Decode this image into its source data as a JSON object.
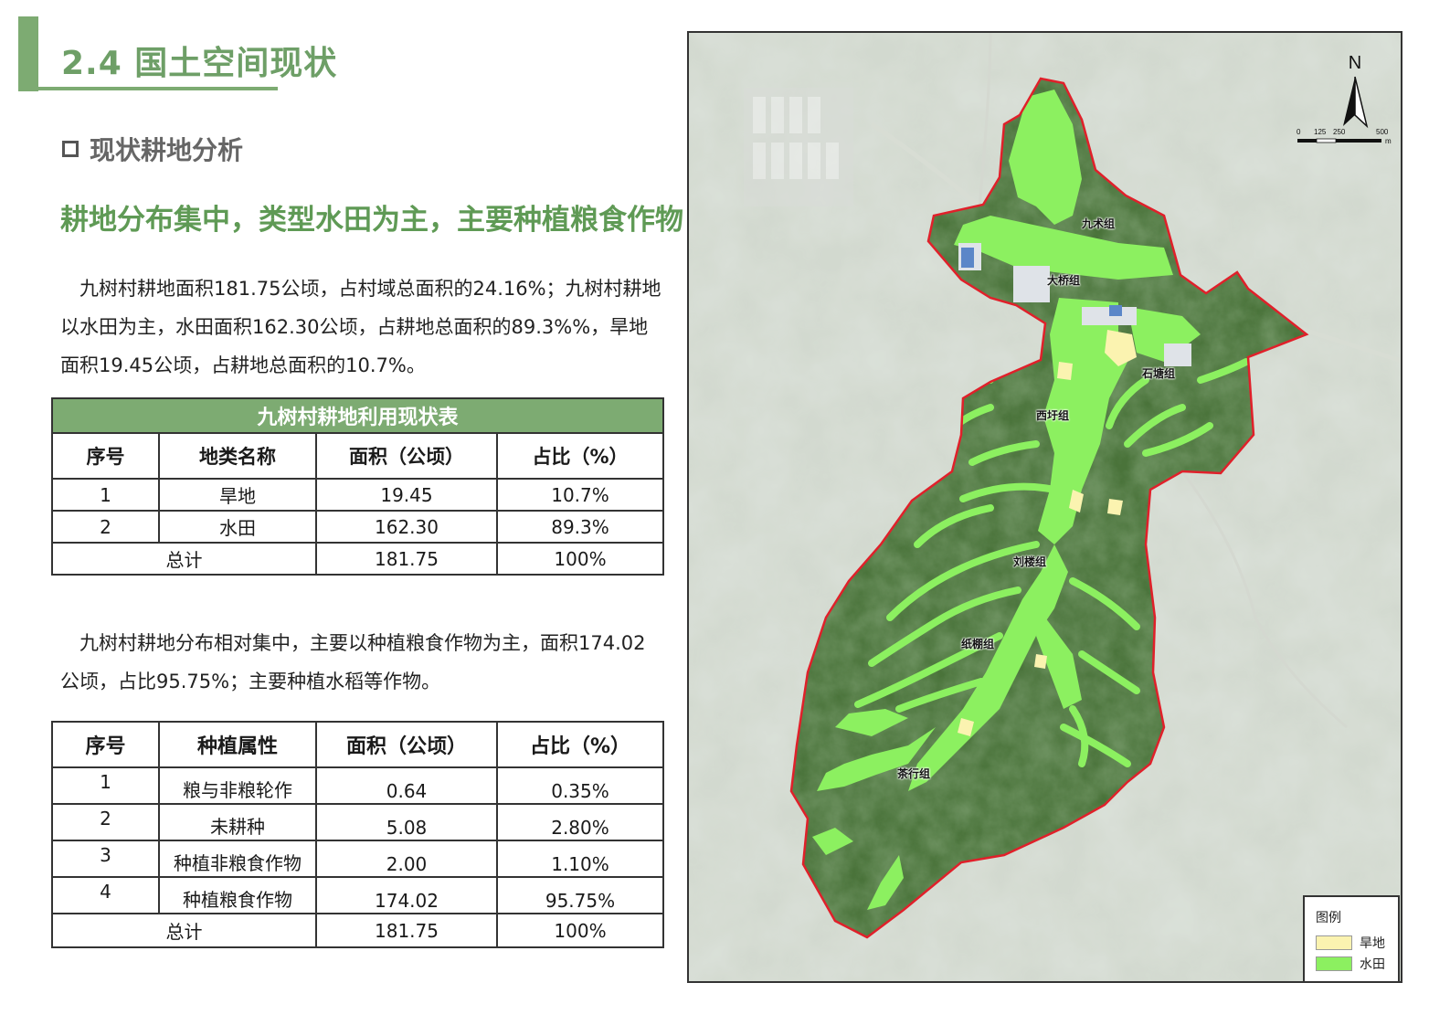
{
  "header": {
    "title": "2.4 国土空间现状",
    "section": "现状耕地分析",
    "headline": "耕地分布集中，类型水田为主，主要种植粮食作物"
  },
  "paragraphs": {
    "p1": "九树村耕地面积181.75公顷，占村域总面积的24.16%；九树村耕地以水田为主，水田面积162.30公顷，占耕地总面积的89.3%%，旱地面积19.45公顷，占耕地总面积的10.7%。",
    "p2": "九树村耕地分布相对集中，主要以种植粮食作物为主，面积174.02公顷，占比95.75%；主要种植水稻等作物。"
  },
  "table1": {
    "caption": "九树村耕地利用现状表",
    "headers": [
      "序号",
      "地类名称",
      "面积（公顷）",
      "占比（%）"
    ],
    "rows": [
      [
        "1",
        "旱地",
        "19.45",
        "10.7%"
      ],
      [
        "2",
        "水田",
        "162.30",
        "89.3%"
      ]
    ],
    "total": [
      "总计",
      "181.75",
      "100%"
    ]
  },
  "table2": {
    "headers": [
      "序号",
      "种植属性",
      "面积（公顷）",
      "占比（%）"
    ],
    "rows": [
      [
        "1",
        "粮与非粮轮作",
        "0.64",
        "0.35%"
      ],
      [
        "2",
        "未耕种",
        "5.08",
        "2.80%"
      ],
      [
        "3",
        "种植非粮食作物",
        "2.00",
        "1.10%"
      ],
      [
        "4",
        "种植粮食作物",
        "174.02",
        "95.75%"
      ]
    ],
    "total": [
      "总计",
      "181.75",
      "100%"
    ]
  },
  "map": {
    "north_label": "N",
    "scale": {
      "ticks": [
        "0",
        "125",
        "250",
        "500"
      ],
      "unit": "m"
    },
    "legend": {
      "title": "图例",
      "items": [
        {
          "label": "旱地",
          "color": "#fbf3b0"
        },
        {
          "label": "水田",
          "color": "#8cf060"
        }
      ]
    },
    "labels": [
      "九术组",
      "大桥组",
      "石塘组",
      "西圩组",
      "刘楼组",
      "纸棚组",
      "茶行组"
    ],
    "boundary_color": "#e0202a"
  },
  "colors": {
    "accent": "#7dab72",
    "headline": "#5f9a55"
  }
}
